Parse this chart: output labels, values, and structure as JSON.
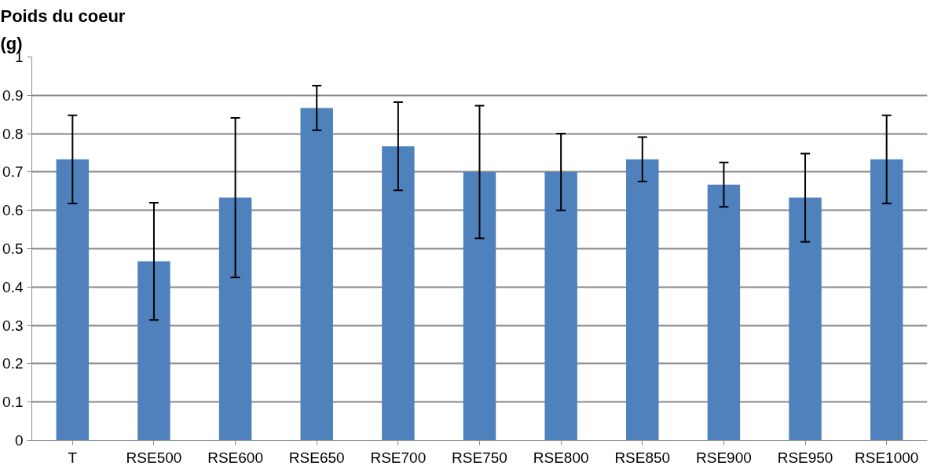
{
  "chart_data": {
    "type": "bar",
    "ylabel": "Poids du coeur\n(g)",
    "categories": [
      "T",
      "RSE500",
      "RSE600",
      "RSE650",
      "RSE700",
      "RSE750",
      "RSE800",
      "RSE850",
      "RSE900",
      "RSE950",
      "RSE1000"
    ],
    "values": [
      0.733,
      0.467,
      0.633,
      0.867,
      0.767,
      0.7,
      0.7,
      0.733,
      0.667,
      0.633,
      0.733
    ],
    "errors": [
      0.115,
      0.153,
      0.208,
      0.058,
      0.115,
      0.173,
      0.1,
      0.058,
      0.058,
      0.115,
      0.115
    ],
    "color": "#4f81bd",
    "ylim": [
      0,
      1
    ],
    "yticks": [
      0,
      0.1,
      0.2,
      0.3,
      0.4,
      0.5,
      0.6,
      0.7,
      0.8,
      0.9,
      1
    ],
    "grid": "y"
  }
}
